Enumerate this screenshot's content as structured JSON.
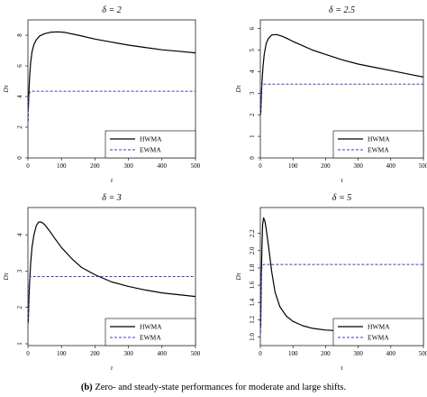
{
  "caption": {
    "label": "(b)",
    "text": "Zero- and steady-state performances for moderate and large shifts."
  },
  "chart_data": [
    {
      "type": "line",
      "title": "δ = 2",
      "xlabel": "τ",
      "ylabel": "Dτ",
      "xlim": [
        0,
        500
      ],
      "ylim": [
        0,
        9
      ],
      "xticks": [
        0,
        100,
        200,
        300,
        400,
        500
      ],
      "yticks": [
        0,
        2,
        4,
        6,
        8
      ],
      "legend_position": "bottom-right",
      "series": [
        {
          "name": "HWMA",
          "style": "solid",
          "color": "#000000",
          "x": [
            1,
            3,
            5,
            8,
            12,
            18,
            25,
            35,
            50,
            70,
            90,
            110,
            150,
            200,
            250,
            300,
            350,
            400,
            450,
            500
          ],
          "y": [
            3.2,
            4.3,
            5.3,
            6.2,
            6.9,
            7.4,
            7.7,
            7.95,
            8.1,
            8.2,
            8.22,
            8.18,
            8.0,
            7.75,
            7.55,
            7.35,
            7.2,
            7.05,
            6.95,
            6.85
          ]
        },
        {
          "name": "EWMA",
          "style": "dashed",
          "color": "#3b3bbf",
          "x": [
            1,
            2,
            3,
            4,
            6,
            10,
            20,
            500
          ],
          "y": [
            2.4,
            3.3,
            3.9,
            4.15,
            4.3,
            4.35,
            4.35,
            4.35
          ]
        }
      ]
    },
    {
      "type": "line",
      "title": "δ = 2.5",
      "xlabel": "τ",
      "ylabel": "Dτ",
      "xlim": [
        0,
        500
      ],
      "ylim": [
        0,
        6.4
      ],
      "xticks": [
        0,
        100,
        200,
        300,
        400,
        500
      ],
      "yticks": [
        0,
        1,
        2,
        3,
        4,
        5,
        6
      ],
      "legend_position": "bottom-right",
      "series": [
        {
          "name": "HWMA",
          "style": "solid",
          "color": "#000000",
          "x": [
            1,
            3,
            5,
            8,
            12,
            18,
            25,
            35,
            50,
            65,
            80,
            100,
            130,
            160,
            200,
            250,
            300,
            350,
            400,
            450,
            500
          ],
          "y": [
            2.0,
            2.8,
            3.5,
            4.2,
            4.8,
            5.3,
            5.55,
            5.7,
            5.72,
            5.65,
            5.55,
            5.4,
            5.2,
            5.0,
            4.8,
            4.55,
            4.35,
            4.2,
            4.05,
            3.9,
            3.75
          ]
        },
        {
          "name": "EWMA",
          "style": "dashed",
          "color": "#3b3bbf",
          "x": [
            1,
            2,
            3,
            4,
            6,
            10,
            20,
            500
          ],
          "y": [
            2.0,
            2.7,
            3.1,
            3.3,
            3.4,
            3.42,
            3.42,
            3.42
          ]
        }
      ]
    },
    {
      "type": "line",
      "title": "δ = 3",
      "xlabel": "τ",
      "ylabel": "Dτ",
      "xlim": [
        0,
        500
      ],
      "ylim": [
        0.95,
        4.75
      ],
      "xticks": [
        0,
        100,
        200,
        300,
        400,
        500
      ],
      "yticks": [
        1,
        2,
        3,
        4
      ],
      "legend_position": "bottom-right",
      "series": [
        {
          "name": "HWMA",
          "style": "solid",
          "color": "#000000",
          "x": [
            1,
            3,
            5,
            8,
            12,
            18,
            25,
            32,
            40,
            50,
            65,
            80,
            100,
            130,
            160,
            200,
            250,
            300,
            350,
            400,
            450,
            500
          ],
          "y": [
            1.6,
            2.2,
            2.7,
            3.2,
            3.65,
            4.0,
            4.25,
            4.35,
            4.35,
            4.28,
            4.1,
            3.9,
            3.65,
            3.35,
            3.1,
            2.9,
            2.7,
            2.58,
            2.48,
            2.4,
            2.35,
            2.3
          ]
        },
        {
          "name": "EWMA",
          "style": "dashed",
          "color": "#3b3bbf",
          "x": [
            1,
            2,
            3,
            4,
            6,
            10,
            20,
            500
          ],
          "y": [
            1.55,
            2.2,
            2.55,
            2.72,
            2.82,
            2.85,
            2.85,
            2.85
          ]
        }
      ]
    },
    {
      "type": "line",
      "title": "δ = 5",
      "xlabel": "τ",
      "ylabel": "Dτ",
      "xlim": [
        0,
        500
      ],
      "ylim": [
        0.9,
        2.5
      ],
      "xticks": [
        0,
        100,
        200,
        300,
        400,
        500
      ],
      "yticks": [
        1.0,
        1.2,
        1.4,
        1.6,
        1.8,
        2.0,
        2.2
      ],
      "legend_position": "bottom-right",
      "series": [
        {
          "name": "HWMA",
          "style": "solid",
          "color": "#000000",
          "x": [
            1,
            3,
            5,
            7,
            10,
            14,
            18,
            25,
            35,
            45,
            60,
            80,
            100,
            130,
            160,
            200,
            250,
            300,
            350,
            400,
            450,
            500
          ],
          "y": [
            1.1,
            1.7,
            2.05,
            2.3,
            2.38,
            2.34,
            2.25,
            2.05,
            1.75,
            1.52,
            1.35,
            1.24,
            1.18,
            1.13,
            1.1,
            1.08,
            1.07,
            1.06,
            1.055,
            1.05,
            1.05,
            1.05
          ]
        },
        {
          "name": "EWMA",
          "style": "dashed",
          "color": "#3b3bbf",
          "x": [
            1,
            2,
            3,
            4,
            6,
            10,
            20,
            500
          ],
          "y": [
            1.05,
            1.5,
            1.7,
            1.78,
            1.82,
            1.84,
            1.84,
            1.84
          ]
        }
      ]
    }
  ]
}
